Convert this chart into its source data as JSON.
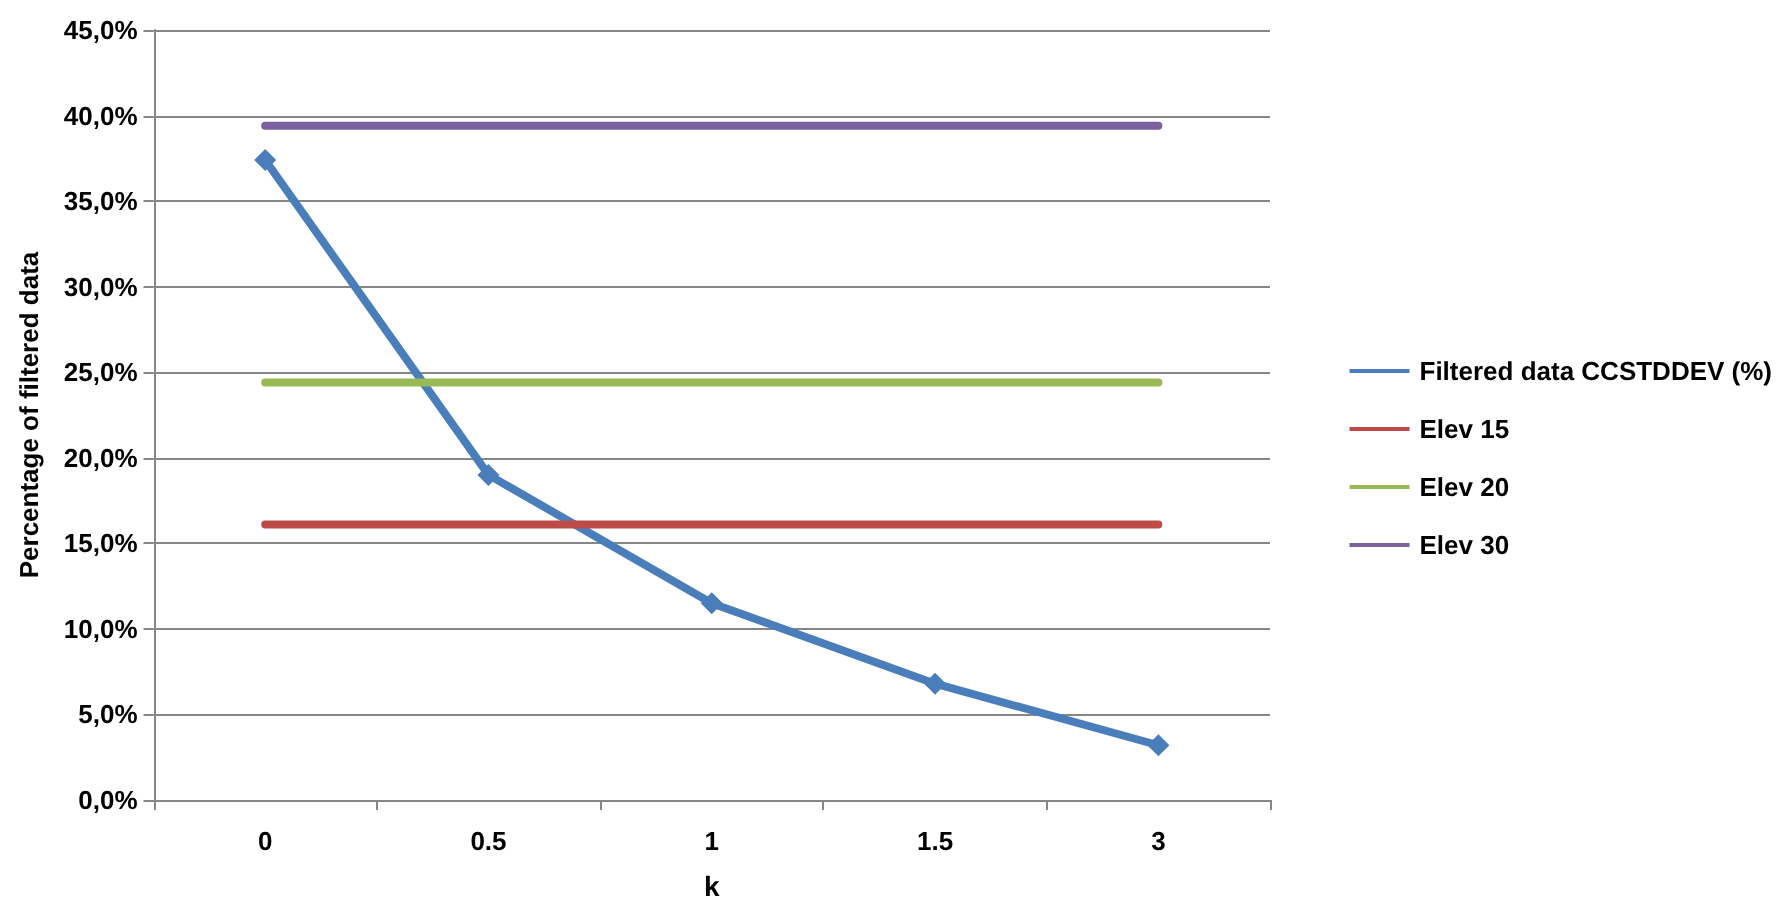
{
  "chart_data": {
    "type": "line",
    "xlabel": "k",
    "ylabel": "Percentage of filtered data",
    "categories": [
      "0",
      "0.5",
      "1",
      "1.5",
      "3"
    ],
    "series": [
      {
        "name": "Filtered data CCSTDDEV (%)",
        "color": "#4a7ebb",
        "marker": "diamond",
        "values": [
          37.4,
          19.0,
          11.5,
          6.8,
          3.2
        ]
      },
      {
        "name": "Elev 15",
        "color": "#be4b48",
        "marker": "none",
        "values": [
          16.1,
          16.1,
          16.1,
          16.1,
          16.1
        ]
      },
      {
        "name": "Elev 20",
        "color": "#98b954",
        "marker": "none",
        "values": [
          24.4,
          24.4,
          24.4,
          24.4,
          24.4
        ]
      },
      {
        "name": "Elev 30",
        "color": "#7d60a0",
        "marker": "none",
        "values": [
          39.4,
          39.4,
          39.4,
          39.4,
          39.4
        ]
      }
    ],
    "ylim": [
      0,
      45
    ],
    "yticks": [
      {
        "value": 0,
        "label": "0,0%"
      },
      {
        "value": 5,
        "label": "5,0%"
      },
      {
        "value": 10,
        "label": "10,0%"
      },
      {
        "value": 15,
        "label": "15,0%"
      },
      {
        "value": 20,
        "label": "20,0%"
      },
      {
        "value": 25,
        "label": "25,0%"
      },
      {
        "value": 30,
        "label": "30,0%"
      },
      {
        "value": 35,
        "label": "35,0%"
      },
      {
        "value": 40,
        "label": "40,0%"
      },
      {
        "value": 45,
        "label": "45,0%"
      }
    ],
    "grid": "y",
    "legend": "right"
  }
}
